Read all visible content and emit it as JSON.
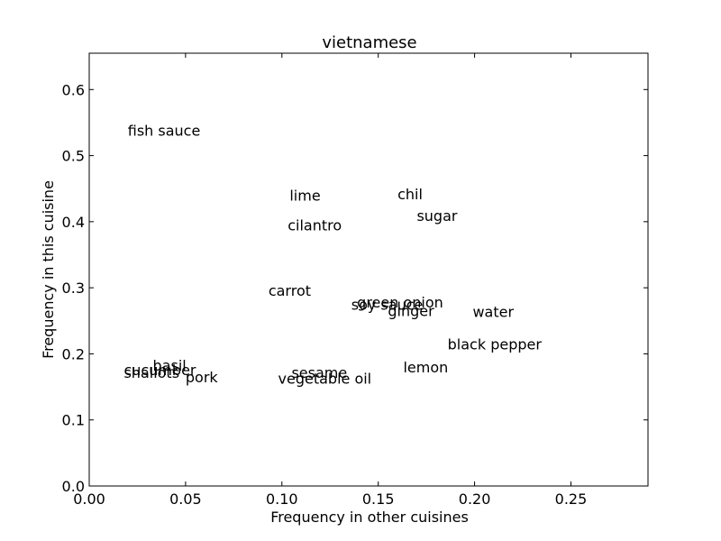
{
  "chart_data": {
    "type": "scatter",
    "title": "vietnamese",
    "xlabel": "Frequency in other cuisines",
    "ylabel": "Frequency in this cuisine",
    "xlim": [
      0.0,
      0.29
    ],
    "ylim": [
      0.0,
      0.655
    ],
    "xticks": [
      "0.00",
      "0.05",
      "0.10",
      "0.15",
      "0.20",
      "0.25"
    ],
    "yticks": [
      "0.0",
      "0.1",
      "0.2",
      "0.3",
      "0.4",
      "0.5",
      "0.6"
    ],
    "grid": false,
    "points": [
      {
        "label": "fish sauce",
        "x": 0.02,
        "y": 0.53
      },
      {
        "label": "lime",
        "x": 0.104,
        "y": 0.432
      },
      {
        "label": "chil",
        "x": 0.16,
        "y": 0.434
      },
      {
        "label": "sugar",
        "x": 0.17,
        "y": 0.401
      },
      {
        "label": "cilantro",
        "x": 0.103,
        "y": 0.387
      },
      {
        "label": "carrot",
        "x": 0.093,
        "y": 0.288
      },
      {
        "label": "green onion",
        "x": 0.139,
        "y": 0.27
      },
      {
        "label": "soy sauce",
        "x": 0.136,
        "y": 0.267
      },
      {
        "label": "ginger",
        "x": 0.155,
        "y": 0.257
      },
      {
        "label": "water",
        "x": 0.199,
        "y": 0.256
      },
      {
        "label": "black pepper",
        "x": 0.186,
        "y": 0.207
      },
      {
        "label": "lemon",
        "x": 0.163,
        "y": 0.172
      },
      {
        "label": "basil",
        "x": 0.033,
        "y": 0.175
      },
      {
        "label": "cucumber",
        "x": 0.018,
        "y": 0.168
      },
      {
        "label": "shallots",
        "x": 0.018,
        "y": 0.164
      },
      {
        "label": "pork",
        "x": 0.05,
        "y": 0.157
      },
      {
        "label": "sesame",
        "x": 0.105,
        "y": 0.164
      },
      {
        "label": "vegetable oil",
        "x": 0.098,
        "y": 0.155
      }
    ]
  }
}
